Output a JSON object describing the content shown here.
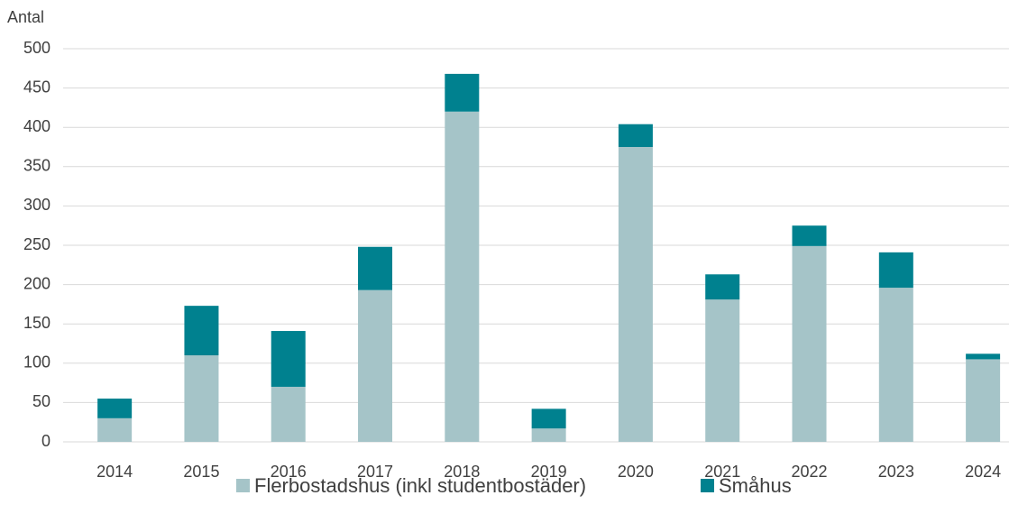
{
  "chart_data": {
    "type": "stacked_bar",
    "y_label": "Antal",
    "categories": [
      "2014",
      "2015",
      "2016",
      "2017",
      "2018",
      "2019",
      "2020",
      "2021",
      "2022",
      "2023",
      "2024"
    ],
    "series": [
      {
        "name": "Flerbostadshus (inkl studentbostäder)",
        "color": "#a5c4c8",
        "values": [
          30,
          110,
          70,
          193,
          420,
          17,
          375,
          181,
          249,
          196,
          105
        ]
      },
      {
        "name": "Småhus",
        "color": "#00818f",
        "values": [
          25,
          63,
          71,
          55,
          48,
          25,
          29,
          32,
          26,
          45,
          7
        ]
      }
    ],
    "ylim": [
      0,
      500
    ],
    "yticks": [
      0,
      50,
      100,
      150,
      200,
      250,
      300,
      350,
      400,
      450,
      500
    ],
    "grid": true
  }
}
